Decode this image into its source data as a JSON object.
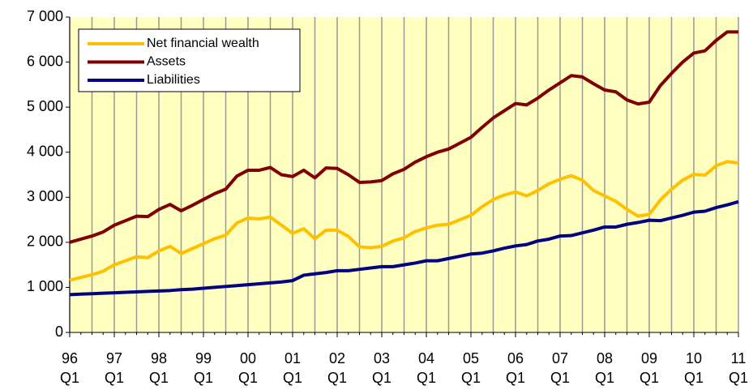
{
  "chart_data": {
    "type": "line",
    "categories": [
      "96 Q1",
      null,
      null,
      null,
      "97 Q1",
      null,
      null,
      null,
      "98 Q1",
      null,
      null,
      null,
      "99 Q1",
      null,
      null,
      null,
      "00 Q1",
      null,
      null,
      null,
      "01 Q1",
      null,
      null,
      null,
      "02 Q1",
      null,
      null,
      null,
      "03 Q1",
      null,
      null,
      null,
      "04 Q1",
      null,
      null,
      null,
      "05 Q1",
      null,
      null,
      null,
      "06 Q1",
      null,
      null,
      null,
      "07 Q1",
      null,
      null,
      null,
      "08 Q1",
      null,
      null,
      null,
      "09 Q1",
      null,
      null,
      null,
      "10 Q1",
      null,
      null,
      null,
      "11 Q1"
    ],
    "series": [
      {
        "name": "Net financial wealth",
        "color": "#ffc000",
        "values": [
          1160,
          1220,
          1280,
          1360,
          1500,
          1590,
          1680,
          1660,
          1810,
          1910,
          1750,
          1860,
          1970,
          2080,
          2160,
          2430,
          2540,
          2520,
          2560,
          2380,
          2200,
          2300,
          2080,
          2270,
          2270,
          2130,
          1900,
          1880,
          1910,
          2030,
          2100,
          2240,
          2320,
          2380,
          2400,
          2500,
          2600,
          2790,
          2950,
          3050,
          3120,
          3030,
          3150,
          3300,
          3400,
          3480,
          3380,
          3150,
          3030,
          2910,
          2730,
          2580,
          2620,
          2940,
          3180,
          3380,
          3510,
          3490,
          3700,
          3790,
          3760
        ]
      },
      {
        "name": "Assets",
        "color": "#800000",
        "values": [
          2000,
          2070,
          2140,
          2230,
          2380,
          2480,
          2580,
          2570,
          2730,
          2840,
          2700,
          2820,
          2950,
          3080,
          3180,
          3470,
          3600,
          3600,
          3660,
          3500,
          3460,
          3600,
          3430,
          3650,
          3640,
          3500,
          3330,
          3340,
          3370,
          3520,
          3620,
          3780,
          3900,
          4000,
          4070,
          4200,
          4330,
          4550,
          4760,
          4920,
          5080,
          5050,
          5200,
          5380,
          5540,
          5700,
          5670,
          5520,
          5380,
          5340,
          5160,
          5070,
          5110,
          5480,
          5750,
          6000,
          6200,
          6250,
          6480,
          6670,
          6670
        ]
      },
      {
        "name": "Liabilities",
        "color": "#000080",
        "values": [
          840,
          850,
          860,
          870,
          880,
          890,
          900,
          910,
          920,
          930,
          950,
          960,
          980,
          1000,
          1020,
          1040,
          1060,
          1080,
          1100,
          1120,
          1150,
          1270,
          1300,
          1330,
          1370,
          1370,
          1400,
          1430,
          1460,
          1460,
          1500,
          1540,
          1590,
          1590,
          1640,
          1690,
          1740,
          1760,
          1810,
          1870,
          1920,
          1950,
          2030,
          2070,
          2140,
          2150,
          2210,
          2270,
          2340,
          2340,
          2400,
          2440,
          2490,
          2480,
          2540,
          2600,
          2670,
          2690,
          2770,
          2830,
          2900
        ]
      }
    ],
    "ylim": [
      0,
      7000
    ],
    "yticks": [
      0,
      {
        "value": 1000,
        "label": "1 000"
      },
      {
        "value": 2000,
        "label": "2 000"
      },
      {
        "value": 3000,
        "label": "3 000"
      },
      {
        "value": 4000,
        "label": "4 000"
      },
      {
        "value": 5000,
        "label": "5 000"
      },
      {
        "value": 6000,
        "label": "6 000"
      },
      {
        "value": 7000,
        "label": "7 000"
      }
    ],
    "grid": true,
    "legend": "upper left",
    "background": "#ffffc0"
  }
}
